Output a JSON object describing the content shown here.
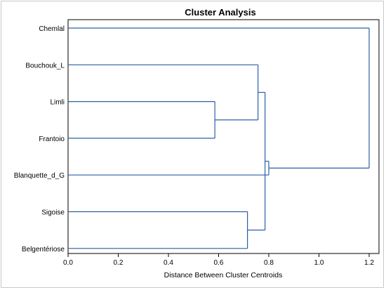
{
  "chart_data": {
    "type": "dendrogram",
    "title": "Cluster Analysis",
    "xlabel": "Distance Between Cluster Centroids",
    "ylabel": "",
    "xlim": [
      0.0,
      1.2
    ],
    "xticks": [
      "0.0",
      "0.2",
      "0.4",
      "0.6",
      "0.8",
      "1.0",
      "1.2"
    ],
    "leaves": [
      "Chemlal",
      "Bouchouk_L",
      "Limli",
      "Frantoio",
      "Blanquette_d_G",
      "Sigoise",
      "Belgentériose"
    ],
    "merges": [
      {
        "a": "Limli",
        "b": "Frantoio",
        "distance": 0.585
      },
      {
        "a": "Sigoise",
        "b": "Belgentériose",
        "distance": 0.715
      },
      {
        "a": "Bouchouk_L",
        "b": "Limli+Frantoio",
        "distance": 0.757
      },
      {
        "a": "Bouchouk_L+Limli+Frantoio",
        "b": "Sigoise+Belgentériose",
        "distance": 0.785
      },
      {
        "a": "Bouchouk_L+Limli+Frantoio+Sigoise+Belgentériose",
        "b": "Blanquette_d_G",
        "distance": 0.8
      },
      {
        "a": "Chemlal",
        "b": "rest",
        "distance": 1.2
      }
    ],
    "grid": false
  },
  "colors": {
    "link": "#2d5fa8"
  }
}
